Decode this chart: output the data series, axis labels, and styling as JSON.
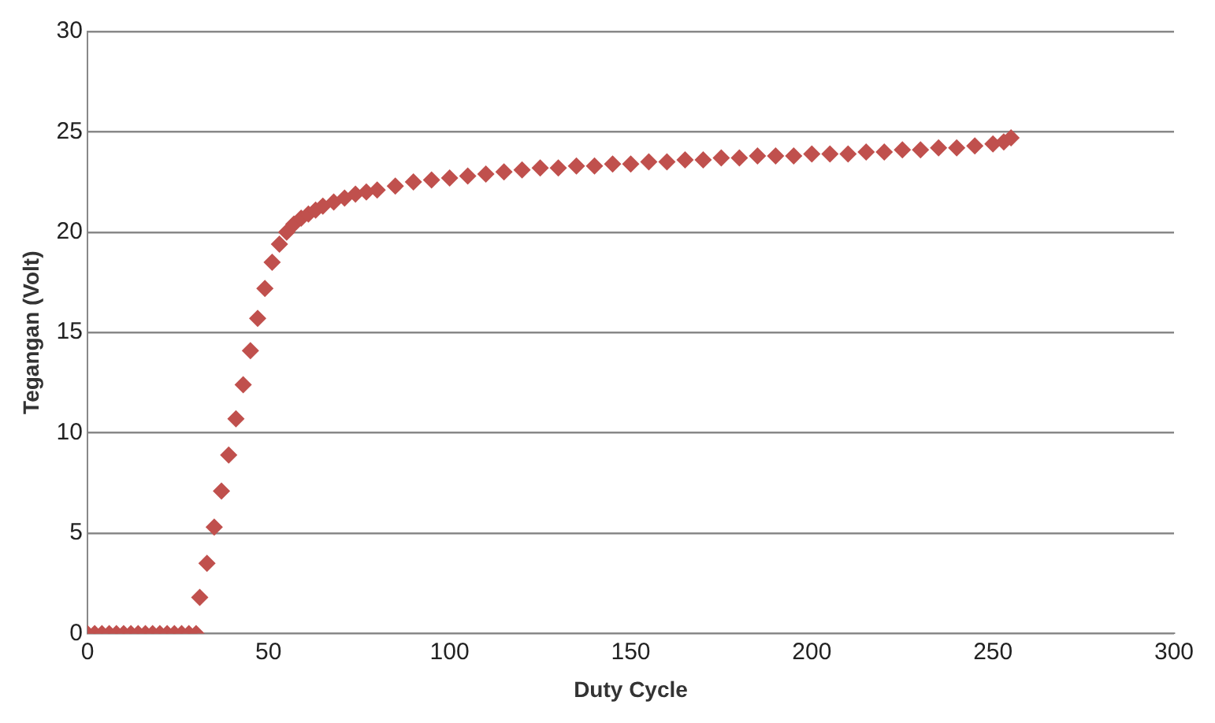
{
  "chart_data": {
    "type": "scatter",
    "xlabel": "Duty Cycle",
    "ylabel": "Tegangan (Volt)",
    "series": [
      {
        "color": "#c0504d",
        "x": [
          0,
          2,
          4,
          6,
          8,
          10,
          12,
          14,
          16,
          18,
          20,
          22,
          24,
          26,
          28,
          30,
          31,
          33,
          35,
          37,
          39,
          41,
          43,
          45,
          47,
          49,
          51,
          53,
          55,
          57,
          59,
          61,
          63,
          65,
          68,
          71,
          74,
          77,
          80,
          85,
          90,
          95,
          100,
          105,
          110,
          115,
          120,
          125,
          130,
          135,
          140,
          145,
          150,
          155,
          160,
          165,
          170,
          175,
          180,
          185,
          190,
          195,
          200,
          205,
          210,
          215,
          220,
          225,
          230,
          235,
          240,
          245,
          250,
          253,
          255
        ],
        "values": [
          0,
          0,
          0,
          0,
          0,
          0,
          0,
          0,
          0,
          0,
          0,
          0,
          0,
          0,
          0,
          0,
          1.8,
          3.5,
          5.3,
          7.1,
          8.9,
          10.7,
          12.4,
          14.1,
          15.7,
          17.2,
          18.5,
          19.4,
          20,
          20.4,
          20.7,
          20.9,
          21.1,
          21.3,
          21.5,
          21.7,
          21.9,
          22,
          22.1,
          22.3,
          22.5,
          22.6,
          22.7,
          22.8,
          22.9,
          23,
          23.1,
          23.2,
          23.2,
          23.3,
          23.3,
          23.4,
          23.4,
          23.5,
          23.5,
          23.6,
          23.6,
          23.7,
          23.7,
          23.8,
          23.8,
          23.8,
          23.9,
          23.9,
          23.9,
          24,
          24,
          24.1,
          24.1,
          24.2,
          24.2,
          24.3,
          24.4,
          24.5,
          24.7
        ]
      }
    ],
    "xlim": [
      0,
      300
    ],
    "xticks": [
      0,
      50,
      100,
      150,
      200,
      250,
      300
    ],
    "ylim": [
      0,
      30
    ],
    "yticks": [
      0,
      5,
      10,
      15,
      20,
      25,
      30
    ],
    "grid": "y",
    "legend": false,
    "marker": "diamond"
  }
}
